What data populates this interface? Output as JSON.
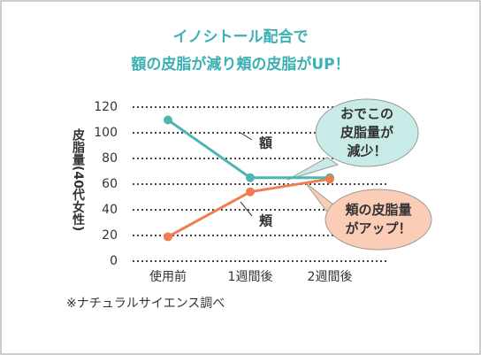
{
  "chart_data": {
    "type": "line",
    "title": [
      "イノシトール配合で",
      "額の皮脂が減り頬の皮脂がUP！"
    ],
    "y_label": "皮脂量(40代女性)",
    "categories": [
      "使用前",
      "1週間後",
      "2週間後"
    ],
    "series": [
      {
        "name": "額",
        "color": "#4fb5b1",
        "values": [
          110,
          65,
          65
        ]
      },
      {
        "name": "頬",
        "color": "#ee7d52",
        "values": [
          19,
          54,
          64
        ]
      }
    ],
    "ylim": [
      0,
      120
    ],
    "yticks": [
      0,
      20,
      40,
      60,
      80,
      100,
      120
    ],
    "grid": true,
    "annotations": [
      {
        "lines": [
          "おでこの",
          "皮脂量が",
          "減少！"
        ]
      },
      {
        "lines": [
          "頬の皮脂量",
          "がアップ！"
        ]
      }
    ],
    "footnote": "※ナチュラルサイエンス調べ"
  }
}
